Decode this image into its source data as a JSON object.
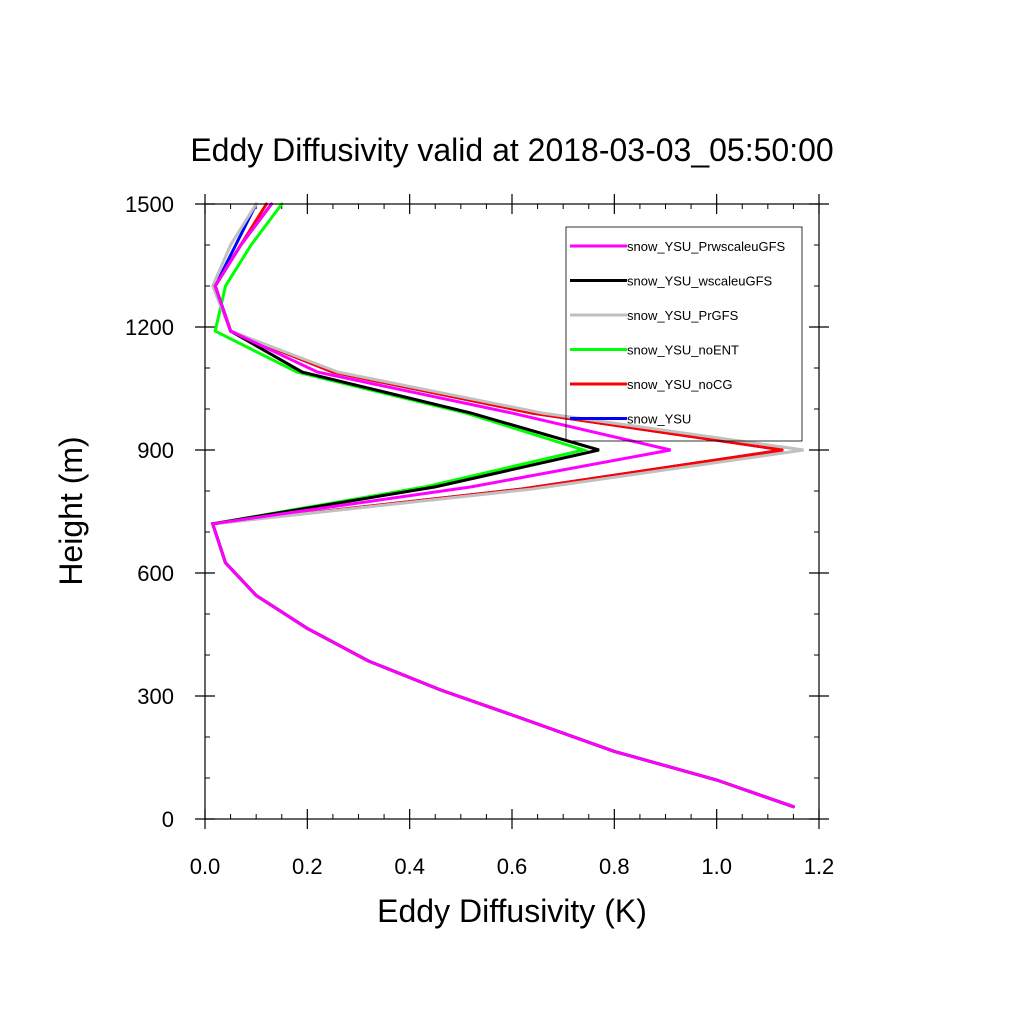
{
  "chart_data": {
    "type": "line",
    "title": "Eddy Diffusivity valid at 2018-03-03_05:50:00",
    "xlabel": "Eddy Diffusivity (K)",
    "ylabel": "Height (m)",
    "xlim": [
      0.0,
      1.2
    ],
    "ylim": [
      0,
      1500
    ],
    "xticks": [
      "0.0",
      "0.2",
      "0.4",
      "0.6",
      "0.8",
      "1.0",
      "1.2"
    ],
    "yticks": [
      "0",
      "300",
      "600",
      "900",
      "1200",
      "1500"
    ],
    "x_tick_values": [
      0.0,
      0.2,
      0.4,
      0.6,
      0.8,
      1.0,
      1.2
    ],
    "y_tick_values": [
      0,
      300,
      600,
      900,
      1200,
      1500
    ],
    "grid": false,
    "legend_position": "top-right",
    "series": [
      {
        "name": "snow_YSU",
        "color": "#0000ff",
        "points": [
          [
            1.15,
            30
          ],
          [
            1.0,
            95
          ],
          [
            0.8,
            165
          ],
          [
            0.62,
            245
          ],
          [
            0.46,
            315
          ],
          [
            0.32,
            385
          ],
          [
            0.2,
            465
          ],
          [
            0.1,
            545
          ],
          [
            0.04,
            625
          ],
          [
            0.015,
            720
          ],
          [
            0.62,
            805
          ],
          [
            1.13,
            900
          ],
          [
            0.64,
            990
          ],
          [
            0.25,
            1090
          ],
          [
            0.05,
            1190
          ],
          [
            0.02,
            1300
          ],
          [
            0.06,
            1400
          ],
          [
            0.1,
            1500
          ]
        ]
      },
      {
        "name": "snow_YSU_noCG",
        "color": "#ff0000",
        "points": [
          [
            1.15,
            30
          ],
          [
            1.0,
            95
          ],
          [
            0.8,
            165
          ],
          [
            0.62,
            245
          ],
          [
            0.46,
            315
          ],
          [
            0.32,
            385
          ],
          [
            0.2,
            465
          ],
          [
            0.1,
            545
          ],
          [
            0.04,
            625
          ],
          [
            0.015,
            720
          ],
          [
            0.62,
            805
          ],
          [
            1.13,
            900
          ],
          [
            0.64,
            990
          ],
          [
            0.25,
            1090
          ],
          [
            0.05,
            1190
          ],
          [
            0.02,
            1300
          ],
          [
            0.07,
            1400
          ],
          [
            0.12,
            1500
          ]
        ]
      },
      {
        "name": "snow_YSU_noENT",
        "color": "#00ff00",
        "points": [
          [
            1.15,
            30
          ],
          [
            1.0,
            95
          ],
          [
            0.8,
            165
          ],
          [
            0.62,
            245
          ],
          [
            0.46,
            315
          ],
          [
            0.32,
            385
          ],
          [
            0.2,
            465
          ],
          [
            0.1,
            545
          ],
          [
            0.04,
            625
          ],
          [
            0.015,
            720
          ],
          [
            0.43,
            810
          ],
          [
            0.74,
            900
          ],
          [
            0.51,
            990
          ],
          [
            0.18,
            1090
          ],
          [
            0.02,
            1190
          ],
          [
            0.04,
            1300
          ],
          [
            0.09,
            1400
          ],
          [
            0.15,
            1500
          ]
        ]
      },
      {
        "name": "snow_YSU_PrGFS",
        "color": "#c0c0c0",
        "points": [
          [
            1.15,
            30
          ],
          [
            1.0,
            95
          ],
          [
            0.8,
            165
          ],
          [
            0.62,
            245
          ],
          [
            0.46,
            315
          ],
          [
            0.32,
            385
          ],
          [
            0.2,
            465
          ],
          [
            0.1,
            545
          ],
          [
            0.04,
            625
          ],
          [
            0.015,
            720
          ],
          [
            0.64,
            805
          ],
          [
            1.17,
            900
          ],
          [
            0.66,
            990
          ],
          [
            0.26,
            1090
          ],
          [
            0.05,
            1190
          ],
          [
            0.015,
            1300
          ],
          [
            0.05,
            1400
          ],
          [
            0.1,
            1500
          ]
        ]
      },
      {
        "name": "snow_YSU_wscaleuGFS",
        "color": "#000000",
        "points": [
          [
            1.15,
            30
          ],
          [
            1.0,
            95
          ],
          [
            0.8,
            165
          ],
          [
            0.62,
            245
          ],
          [
            0.46,
            315
          ],
          [
            0.32,
            385
          ],
          [
            0.2,
            465
          ],
          [
            0.1,
            545
          ],
          [
            0.04,
            625
          ],
          [
            0.015,
            720
          ],
          [
            0.45,
            810
          ],
          [
            0.77,
            900
          ],
          [
            0.52,
            990
          ],
          [
            0.19,
            1090
          ],
          [
            0.05,
            1190
          ],
          [
            0.02,
            1300
          ],
          [
            0.07,
            1400
          ],
          [
            0.13,
            1500
          ]
        ]
      },
      {
        "name": "snow_YSU_PrwscaleuGFS",
        "color": "#ff00ff",
        "points": [
          [
            1.15,
            30
          ],
          [
            1.0,
            95
          ],
          [
            0.8,
            165
          ],
          [
            0.62,
            245
          ],
          [
            0.46,
            315
          ],
          [
            0.32,
            385
          ],
          [
            0.2,
            465
          ],
          [
            0.1,
            545
          ],
          [
            0.04,
            625
          ],
          [
            0.015,
            720
          ],
          [
            0.52,
            810
          ],
          [
            0.91,
            900
          ],
          [
            0.6,
            990
          ],
          [
            0.22,
            1090
          ],
          [
            0.05,
            1190
          ],
          [
            0.02,
            1300
          ],
          [
            0.07,
            1400
          ],
          [
            0.13,
            1500
          ]
        ]
      }
    ],
    "legend_order": [
      "snow_YSU_PrwscaleuGFS",
      "snow_YSU_wscaleuGFS",
      "snow_YSU_PrGFS",
      "snow_YSU_noENT",
      "snow_YSU_noCG",
      "snow_YSU"
    ]
  }
}
